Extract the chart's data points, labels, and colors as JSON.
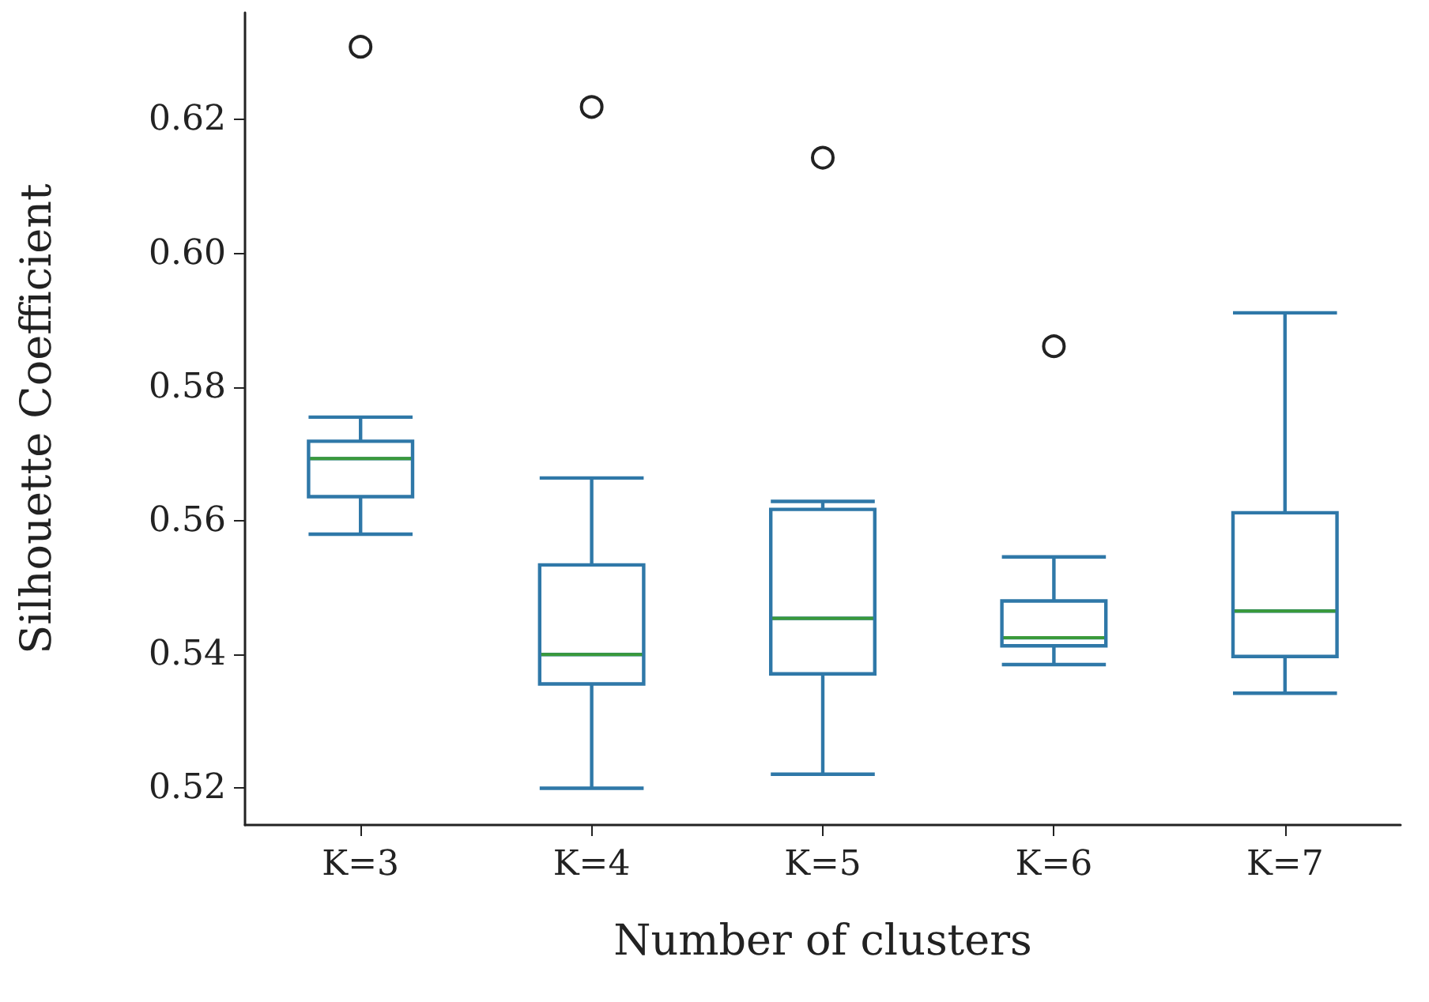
{
  "chart_data": {
    "type": "box",
    "xlabel": "Number of clusters",
    "ylabel": "Silhouette Coefficient",
    "categories": [
      "K=3",
      "K=4",
      "K=5",
      "K=6",
      "K=7"
    ],
    "series": [
      {
        "color": "#2f78a8",
        "boxes": [
          {
            "low": 0.558,
            "q1": 0.5636,
            "median": 0.5693,
            "q3": 0.5719,
            "high": 0.5755,
            "outliers": [
              0.6309
            ]
          },
          {
            "low": 0.52,
            "q1": 0.5356,
            "median": 0.54,
            "q3": 0.5534,
            "high": 0.5664,
            "outliers": [
              0.6219
            ]
          },
          {
            "low": 0.5221,
            "q1": 0.5371,
            "median": 0.5454,
            "q3": 0.5617,
            "high": 0.5629,
            "outliers": [
              0.6143
            ]
          },
          {
            "low": 0.5385,
            "q1": 0.5413,
            "median": 0.5425,
            "q3": 0.548,
            "high": 0.5546,
            "outliers": [
              0.5861
            ]
          },
          {
            "low": 0.5342,
            "q1": 0.5397,
            "median": 0.5465,
            "q3": 0.5612,
            "high": 0.5911
          }
        ]
      }
    ],
    "ylim": [
      0.5145,
      0.636
    ],
    "yticks": [
      0.52,
      0.54,
      0.56,
      0.58,
      {
        "value": 0.6,
        "label": "0.60"
      },
      0.62
    ],
    "grid": false
  }
}
